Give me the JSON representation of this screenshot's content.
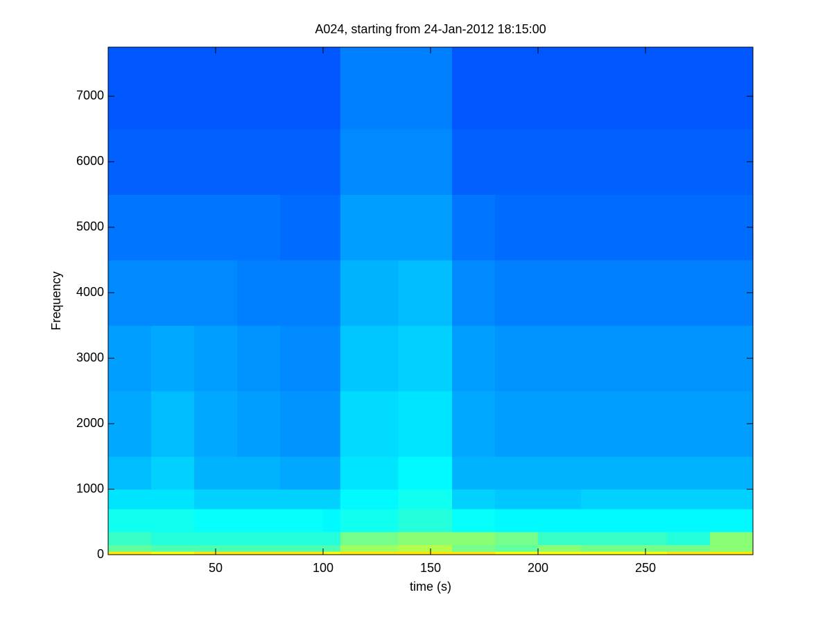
{
  "chart_data": {
    "type": "spectrogram",
    "title": "A024, starting from 24-Jan-2012 18:15:00",
    "xlabel": "time (s)",
    "ylabel": "Frequency",
    "xlim": [
      0,
      300
    ],
    "ylim": [
      0,
      7750
    ],
    "xticks": [
      50,
      100,
      150,
      200,
      250
    ],
    "yticks": [
      0,
      1000,
      2000,
      3000,
      4000,
      5000,
      6000,
      7000
    ],
    "grid": false,
    "colormap": "jet",
    "clim": [
      0,
      1
    ],
    "x_edges": [
      0,
      20,
      40,
      60,
      80,
      100,
      108,
      135,
      160,
      180,
      200,
      220,
      240,
      260,
      280,
      300
    ],
    "y_edges": [
      0,
      50,
      150,
      350,
      700,
      1000,
      1500,
      2500,
      3500,
      4500,
      5500,
      6500,
      7750
    ],
    "values": [
      [
        0.9,
        0.88,
        0.9,
        0.9,
        0.9,
        0.88,
        0.9,
        0.9,
        0.9,
        0.88,
        0.88,
        0.88,
        0.88,
        0.9,
        0.9
      ],
      [
        0.72,
        0.7,
        0.7,
        0.7,
        0.7,
        0.7,
        0.78,
        0.8,
        0.74,
        0.72,
        0.76,
        0.74,
        0.74,
        0.74,
        0.76
      ],
      [
        0.68,
        0.66,
        0.66,
        0.66,
        0.66,
        0.66,
        0.74,
        0.76,
        0.76,
        0.74,
        0.68,
        0.68,
        0.68,
        0.66,
        0.76
      ],
      [
        0.64,
        0.64,
        0.63,
        0.63,
        0.63,
        0.62,
        0.64,
        0.66,
        0.63,
        0.62,
        0.62,
        0.62,
        0.62,
        0.62,
        0.62
      ],
      [
        0.6,
        0.6,
        0.58,
        0.58,
        0.58,
        0.58,
        0.62,
        0.64,
        0.58,
        0.57,
        0.57,
        0.58,
        0.58,
        0.58,
        0.58
      ],
      [
        0.56,
        0.58,
        0.55,
        0.55,
        0.54,
        0.54,
        0.6,
        0.62,
        0.55,
        0.55,
        0.55,
        0.55,
        0.55,
        0.55,
        0.55
      ],
      [
        0.54,
        0.56,
        0.54,
        0.53,
        0.52,
        0.52,
        0.59,
        0.6,
        0.54,
        0.53,
        0.53,
        0.53,
        0.53,
        0.53,
        0.53
      ],
      [
        0.53,
        0.54,
        0.53,
        0.52,
        0.51,
        0.51,
        0.57,
        0.58,
        0.53,
        0.52,
        0.52,
        0.52,
        0.52,
        0.52,
        0.52
      ],
      [
        0.51,
        0.51,
        0.51,
        0.5,
        0.5,
        0.5,
        0.55,
        0.56,
        0.51,
        0.5,
        0.5,
        0.5,
        0.5,
        0.5,
        0.5
      ],
      [
        0.49,
        0.49,
        0.49,
        0.49,
        0.48,
        0.48,
        0.53,
        0.53,
        0.49,
        0.48,
        0.48,
        0.48,
        0.48,
        0.48,
        0.48
      ],
      [
        0.47,
        0.47,
        0.47,
        0.47,
        0.47,
        0.47,
        0.51,
        0.51,
        0.47,
        0.47,
        0.47,
        0.47,
        0.47,
        0.47,
        0.47
      ],
      [
        0.46,
        0.46,
        0.46,
        0.46,
        0.46,
        0.46,
        0.5,
        0.5,
        0.46,
        0.46,
        0.46,
        0.46,
        0.46,
        0.46,
        0.46
      ]
    ]
  }
}
